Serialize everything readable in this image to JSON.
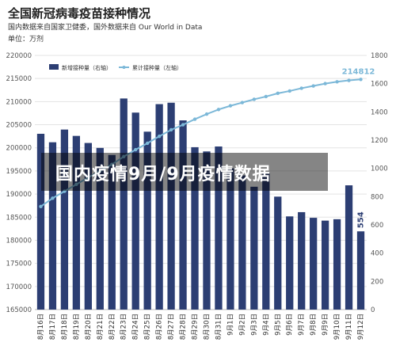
{
  "header": {
    "title": "全国新冠病毒疫苗接种情况",
    "source": "国内数据来自国家卫健委，国外数据来自 Our World in Data",
    "unit": "单位：万剂"
  },
  "overlay": {
    "text": "国内疫情9月/9月疫情数据"
  },
  "colors": {
    "bar": "#2c3e73",
    "line": "#7cb8d8",
    "last_label": "#7cb8d8"
  },
  "chart_data": {
    "type": "bar",
    "categories": [
      "8月16日",
      "8月17日",
      "8月18日",
      "8月19日",
      "8月20日",
      "8月21日",
      "8月22日",
      "8月23日",
      "8月24日",
      "8月25日",
      "8月26日",
      "8月27日",
      "8月28日",
      "8月29日",
      "8月30日",
      "8月31日",
      "9月1日",
      "9月2日",
      "9月3日",
      "9月4日",
      "9月5日",
      "9月6日",
      "9月7日",
      "9月8日",
      "9月9日",
      "9月10日",
      "9月11日",
      "9月12日"
    ],
    "x_tick_labels": [
      "8月16日",
      "8月17日",
      "8月18日",
      "8月19日",
      "8月20日",
      "8月21日",
      "8月22日",
      "8月23日",
      "8月24日",
      "8月25日",
      "8月26日",
      "8月27日",
      "8月28日",
      "8月29日",
      "8月30日",
      "8月31日",
      "9月1日",
      "9月2日",
      "9月3日",
      "9月4日",
      "9月5日",
      "9月6日",
      "9月7日",
      "9月8日",
      "9月9日",
      "9月10日",
      "9月11日",
      "9月12日"
    ],
    "series": [
      {
        "name": "新增接种量（右轴）",
        "type": "bar",
        "axis": "right",
        "values": [
          1245,
          1185,
          1275,
          1230,
          1180,
          1145,
          1095,
          1495,
          1395,
          1260,
          1455,
          1465,
          1340,
          1150,
          1120,
          1155,
          1000,
          950,
          870,
          970,
          800,
          660,
          690,
          650,
          630,
          640,
          880,
          554
        ]
      },
      {
        "name": "累计接种量（左轴）",
        "type": "line",
        "axis": "left",
        "values": [
          187300,
          189100,
          190600,
          192100,
          193600,
          195000,
          196400,
          198100,
          199600,
          201000,
          202500,
          203900,
          205000,
          206200,
          207300,
          208300,
          209100,
          209800,
          210500,
          211100,
          211800,
          212300,
          212900,
          213400,
          213900,
          214300,
          214600,
          214812
        ]
      }
    ],
    "left_axis": {
      "min": 165000,
      "max": 220000,
      "ticks": [
        165000,
        170000,
        175000,
        180000,
        185000,
        190000,
        195000,
        200000,
        205000,
        210000,
        215000,
        220000
      ]
    },
    "right_axis": {
      "min": 0,
      "max": 1800,
      "ticks": [
        0,
        200,
        400,
        600,
        800,
        1000,
        1200,
        1400,
        1600,
        1800
      ]
    },
    "left_tick_labels": [
      "165000",
      "170000",
      "175000",
      "180000",
      "185000",
      "190000",
      "195000",
      "200000",
      "205000",
      "210000",
      "215000",
      "220000"
    ],
    "right_tick_labels": [
      "0",
      "200",
      "400",
      "600",
      "800",
      "1000",
      "1200",
      "1400",
      "1600",
      "1800"
    ],
    "data_labels": {
      "last_bar": "554",
      "last_line": "214812"
    },
    "legend": {
      "placement": "top",
      "items": [
        "新增接种量（右轴）",
        "累计接种量（左轴）"
      ]
    },
    "grid": true
  }
}
